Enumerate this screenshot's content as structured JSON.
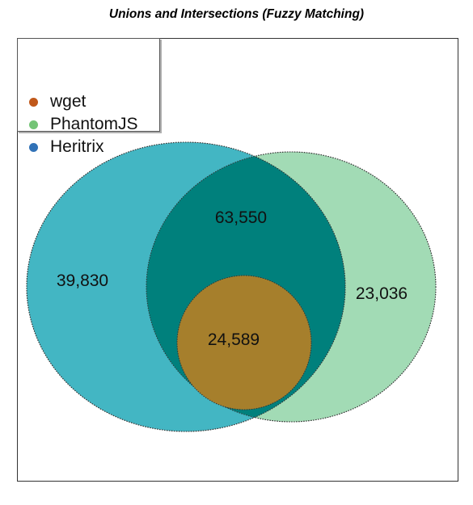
{
  "title": "Unions and Intersections (Fuzzy Matching)",
  "legend": [
    {
      "label": "wget",
      "color": "#c0581a"
    },
    {
      "label": "PhantomJS",
      "color": "#74c476"
    },
    {
      "label": "Heritrix",
      "color": "#3172b7"
    }
  ],
  "regions": {
    "heritrix_only": "39,830",
    "phantomjs_only": "23,036",
    "heritrix_phantomjs": "63,550",
    "all_three": "24,589"
  },
  "colors": {
    "heritrix_fill": "#43b6c3",
    "phantomjs_fill": "#a2dbb5",
    "overlap_fill": "#00807c",
    "wget_fill": "#a67f2c"
  }
}
